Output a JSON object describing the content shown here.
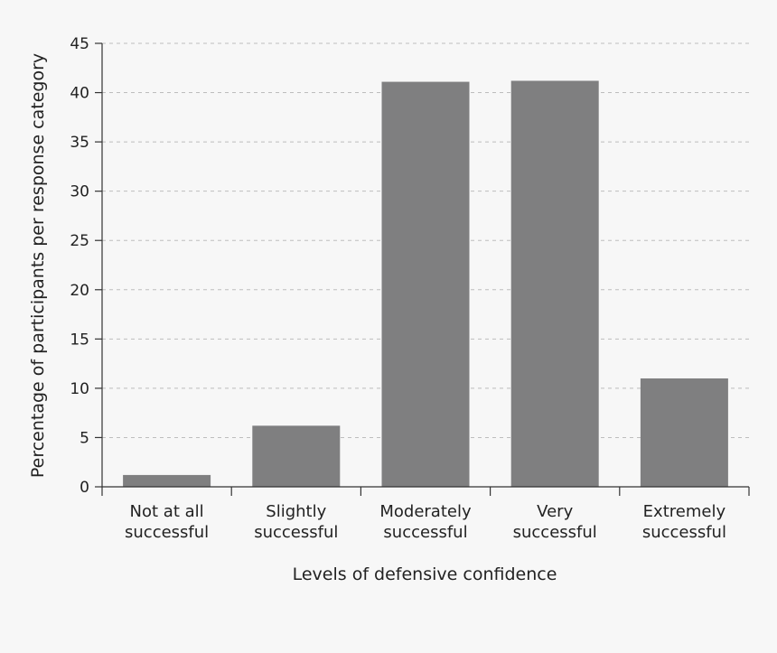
{
  "chart_data": {
    "type": "bar",
    "categories": [
      [
        "Not at all",
        "successful"
      ],
      [
        "Slightly",
        "successful"
      ],
      [
        "Moderately",
        "successful"
      ],
      [
        "Very",
        "successful"
      ],
      [
        "Extremely",
        "successful"
      ]
    ],
    "values": [
      1.2,
      6.2,
      41.1,
      41.2,
      11.0
    ],
    "xlabel": "Levels of defensive confidence",
    "ylabel": "Percentage of participants per response category",
    "ylim": [
      0,
      45
    ],
    "yticks": [
      "0",
      "5",
      "10",
      "15",
      "20",
      "25",
      "30",
      "35",
      "40",
      "45"
    ],
    "grid": true,
    "bar_color": "#7f7f80",
    "grid_color": "#bdbdbd",
    "axis_color": "#333333"
  }
}
